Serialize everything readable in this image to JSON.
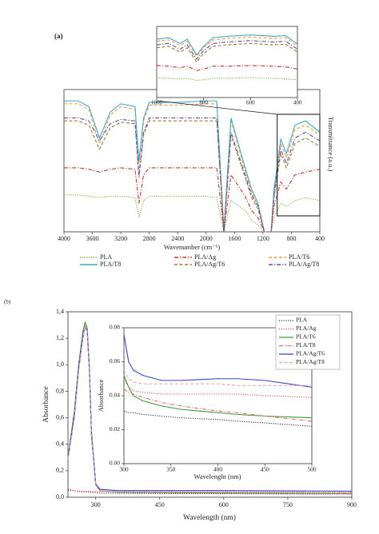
{
  "chart_data": [
    {
      "type": "line",
      "panel_label": "(a)",
      "xlabel": "Wavenumber (cm⁻¹)",
      "ylabel": "Transmittance (a.u.)",
      "x": [
        4000,
        3800,
        3650,
        3500,
        3350,
        3200,
        3000,
        2945,
        2880,
        2800,
        2400,
        2000,
        1850,
        1750,
        1650,
        1450,
        1360,
        1270,
        1180,
        1085,
        1045,
        950,
        870,
        750,
        600,
        400
      ],
      "xlim": [
        4000,
        400
      ],
      "xticks": [
        4000,
        3600,
        3200,
        2800,
        2400,
        2000,
        1600,
        1200,
        800,
        400
      ],
      "ylim": [
        0,
        100
      ],
      "legend": "bottom",
      "series": [
        {
          "name": "PLA",
          "color": "#7cb342",
          "dash": "dotted",
          "values": [
            26,
            26,
            25,
            24,
            25,
            25,
            24,
            10,
            22,
            25,
            25,
            25,
            24,
            0,
            22,
            15,
            8,
            5,
            0,
            0,
            10,
            20,
            18,
            22,
            24,
            22
          ]
        },
        {
          "name": "PLA/Ag",
          "color": "#c0392b",
          "dash": "dashdot",
          "values": [
            45,
            45,
            44,
            42,
            44,
            45,
            44,
            20,
            40,
            45,
            45,
            45,
            45,
            0,
            40,
            25,
            15,
            10,
            0,
            0,
            18,
            35,
            30,
            40,
            42,
            44
          ]
        },
        {
          "name": "PLA/T6",
          "color": "#f0a040",
          "dash": "dashed",
          "values": [
            90,
            90,
            86,
            62,
            82,
            88,
            86,
            48,
            78,
            89,
            89,
            90,
            90,
            0,
            78,
            43,
            28,
            18,
            0,
            0,
            28,
            62,
            52,
            72,
            75,
            68
          ]
        },
        {
          "name": "PLA/T8",
          "color": "#3fa9c9",
          "dash": "solid",
          "values": [
            92,
            92,
            88,
            66,
            84,
            90,
            88,
            50,
            80,
            91,
            91,
            92,
            92,
            0,
            80,
            45,
            30,
            20,
            0,
            0,
            30,
            65,
            55,
            75,
            78,
            70
          ]
        },
        {
          "name": "PLA/Ag/T6",
          "color": "#9a7a3a",
          "dash": "dashed",
          "values": [
            78,
            78,
            75,
            58,
            73,
            77,
            76,
            38,
            68,
            78,
            78,
            78,
            78,
            0,
            68,
            38,
            24,
            16,
            0,
            0,
            24,
            55,
            45,
            62,
            66,
            60
          ]
        },
        {
          "name": "PLA/Ag/T8",
          "color": "#6a4a9a",
          "dash": "dashdot",
          "values": [
            80,
            80,
            78,
            64,
            76,
            79,
            78,
            40,
            70,
            80,
            80,
            80,
            80,
            0,
            70,
            40,
            26,
            18,
            0,
            0,
            26,
            58,
            48,
            66,
            70,
            64
          ]
        }
      ],
      "inset": {
        "x": [
          1000,
          950,
          900,
          870,
          830,
          800,
          760,
          700,
          600,
          500,
          450,
          400
        ],
        "xlim": [
          1000,
          400
        ],
        "xticks": [
          1000,
          800,
          600,
          400
        ],
        "ylim": [
          0,
          100
        ],
        "series": [
          {
            "values": [
              28,
              27,
              26,
              27,
              24,
              25,
              27,
              27,
              28,
              27,
              26,
              25
            ]
          },
          {
            "values": [
              45,
              44,
              42,
              44,
              38,
              40,
              44,
              44,
              45,
              44,
              43,
              40
            ]
          },
          {
            "values": [
              79,
              81,
              73,
              79,
              58,
              70,
              81,
              83,
              85,
              83,
              84,
              72
            ]
          },
          {
            "values": [
              82,
              84,
              76,
              82,
              60,
              72,
              84,
              86,
              88,
              86,
              87,
              75
            ]
          },
          {
            "values": [
              70,
              72,
              64,
              70,
              50,
              62,
              72,
              74,
              76,
              74,
              75,
              64
            ]
          },
          {
            "values": [
              74,
              76,
              68,
              74,
              54,
              66,
              76,
              78,
              80,
              78,
              79,
              68
            ]
          }
        ]
      }
    },
    {
      "type": "line",
      "panel_label": "(b)",
      "xlabel": "Wavelength (nm)",
      "ylabel": "Absorbance",
      "x": [
        235,
        250,
        260,
        270,
        275,
        280,
        285,
        290,
        300,
        310,
        350,
        450,
        600,
        750,
        900
      ],
      "xlim": [
        235,
        900
      ],
      "xticks": [
        300,
        450,
        600,
        750,
        900
      ],
      "ylim": [
        0,
        1.4
      ],
      "yticks": [
        {
          "value": 0,
          "label": "0,0"
        },
        {
          "value": 0.2,
          "label": "0,2"
        },
        {
          "value": 0.4,
          "label": "0,4"
        },
        {
          "value": 0.6,
          "label": "0,6"
        },
        {
          "value": 0.8,
          "label": "0,8"
        },
        {
          "value": 1.0,
          "label": "1,0"
        },
        {
          "value": 1.2,
          "label": "1,2"
        },
        {
          "value": 1.4,
          "label": "1,4"
        }
      ],
      "legend": "upper right",
      "series": [
        {
          "name": "PLA",
          "color": "#333333",
          "dash": "dotted",
          "values": [
            0.06,
            0.05,
            0.045,
            0.04,
            0.04,
            0.04,
            0.038,
            0.036,
            0.034,
            0.032,
            0.03,
            0.028,
            0.027,
            0.025,
            0.024
          ]
        },
        {
          "name": "PLA/Ag",
          "color": "#d9534f",
          "dash": "dotted",
          "values": [
            0.05,
            0.048,
            0.047,
            0.046,
            0.046,
            0.045,
            0.045,
            0.045,
            0.045,
            0.044,
            0.043,
            0.042,
            0.041,
            0.04,
            0.04
          ]
        },
        {
          "name": "PLA/T6",
          "color": "#3a9a3a",
          "dash": "solid",
          "values": [
            0.3,
            0.65,
            1.0,
            1.25,
            1.32,
            1.28,
            1.0,
            0.5,
            0.1,
            0.05,
            0.038,
            0.035,
            0.032,
            0.03,
            0.028
          ]
        },
        {
          "name": "PLA/T8",
          "color": "#e07070",
          "dash": "dashdot",
          "values": [
            0.28,
            0.6,
            0.95,
            1.2,
            1.28,
            1.25,
            0.95,
            0.45,
            0.09,
            0.05,
            0.04,
            0.038,
            0.035,
            0.033,
            0.03
          ]
        },
        {
          "name": "PLA/Ag/T6",
          "color": "#3344cc",
          "dash": "solid",
          "values": [
            0.3,
            0.62,
            0.98,
            1.22,
            1.29,
            1.26,
            0.98,
            0.48,
            0.1,
            0.06,
            0.05,
            0.05,
            0.05,
            0.048,
            0.046
          ]
        },
        {
          "name": "PLA/Ag/T8",
          "color": "#e8a0b0",
          "dash": "dashed",
          "values": [
            0.29,
            0.6,
            0.96,
            1.2,
            1.3,
            1.25,
            0.97,
            0.46,
            0.09,
            0.05,
            0.042,
            0.04,
            0.038,
            0.036,
            0.034
          ]
        }
      ],
      "inset": {
        "xlabel": "Wavelenght (nm)",
        "ylabel": "Absorbance",
        "x": [
          300,
          305,
          310,
          320,
          340,
          360,
          400,
          420,
          450,
          500
        ],
        "xlim": [
          300,
          500
        ],
        "xticks": [
          300,
          350,
          400,
          450,
          500
        ],
        "ylim": [
          0,
          0.08
        ],
        "yticks": [
          {
            "value": 0,
            "label": "0.00"
          },
          {
            "value": 0.02,
            "label": "0.02"
          },
          {
            "value": 0.04,
            "label": "0.04"
          },
          {
            "value": 0.06,
            "label": "0.06"
          },
          {
            "value": 0.08,
            "label": "0.08"
          }
        ],
        "series": [
          {
            "values": [
              0.031,
              0.03,
              0.03,
              0.029,
              0.028,
              0.027,
              0.026,
              0.025,
              0.024,
              0.022
            ]
          },
          {
            "values": [
              0.05,
              0.045,
              0.043,
              0.042,
              0.041,
              0.041,
              0.041,
              0.041,
              0.04,
              0.039
            ]
          },
          {
            "values": [
              0.052,
              0.045,
              0.04,
              0.037,
              0.034,
              0.032,
              0.03,
              0.029,
              0.028,
              0.027
            ]
          },
          {
            "values": [
              0.044,
              0.042,
              0.041,
              0.039,
              0.036,
              0.034,
              0.031,
              0.03,
              0.028,
              0.025
            ]
          },
          {
            "values": [
              0.076,
              0.06,
              0.055,
              0.052,
              0.049,
              0.049,
              0.05,
              0.05,
              0.049,
              0.045
            ]
          },
          {
            "values": [
              0.055,
              0.05,
              0.048,
              0.047,
              0.047,
              0.047,
              0.047,
              0.046,
              0.046,
              0.046
            ]
          }
        ]
      }
    }
  ]
}
